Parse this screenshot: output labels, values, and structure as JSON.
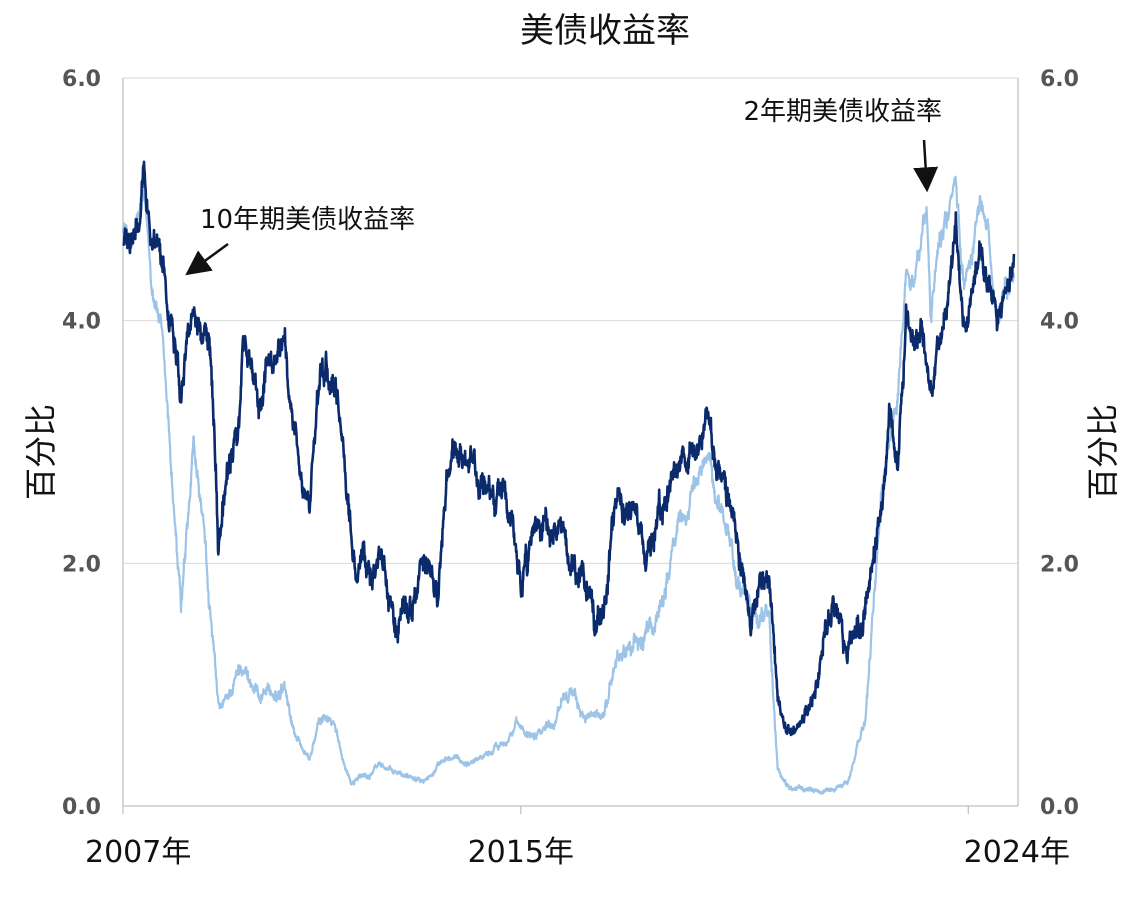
{
  "chart_data": {
    "type": "line",
    "title": "美债收益率",
    "ylabel_left": "百分比",
    "ylabel_right": "百分比",
    "x_range": [
      "2007-01",
      "2024-12"
    ],
    "x_tick_labels": [
      "2007年",
      "2015年",
      "2024年"
    ],
    "x_tick_positions": [
      "2007-01",
      "2015-01",
      "2024-01"
    ],
    "ylim": [
      0,
      6
    ],
    "y_tick_labels": [
      "0.0",
      "2.0",
      "4.0",
      "6.0"
    ],
    "grid": true,
    "colors": {
      "ten_year": "#0a2a6b",
      "two_year": "#9dc3e6"
    },
    "annotations": [
      {
        "text": "10年期美债收益率",
        "target_date": "2008-05",
        "target_value": 4.3,
        "series": "10年期美债收益率"
      },
      {
        "text": "2年期美债收益率",
        "target_date": "2023-03",
        "target_value": 5.0,
        "series": "2年期美债收益率"
      }
    ],
    "series": [
      {
        "name": "10年期美债收益率",
        "color": "#0a2a6b",
        "points": [
          [
            "2007-01",
            4.65
          ],
          [
            "2007-03",
            4.6
          ],
          [
            "2007-05",
            4.75
          ],
          [
            "2007-06",
            5.2
          ],
          [
            "2007-08",
            4.7
          ],
          [
            "2007-10",
            4.6
          ],
          [
            "2007-12",
            4.1
          ],
          [
            "2008-02",
            3.8
          ],
          [
            "2008-03",
            3.45
          ],
          [
            "2008-05",
            4.0
          ],
          [
            "2008-06",
            4.2
          ],
          [
            "2008-08",
            3.9
          ],
          [
            "2008-10",
            3.8
          ],
          [
            "2008-11",
            3.2
          ],
          [
            "2008-12",
            2.2
          ],
          [
            "2009-01",
            2.5
          ],
          [
            "2009-03",
            2.8
          ],
          [
            "2009-05",
            3.2
          ],
          [
            "2009-06",
            3.8
          ],
          [
            "2009-08",
            3.6
          ],
          [
            "2009-10",
            3.3
          ],
          [
            "2009-12",
            3.7
          ],
          [
            "2010-02",
            3.7
          ],
          [
            "2010-04",
            3.9
          ],
          [
            "2010-06",
            3.1
          ],
          [
            "2010-08",
            2.6
          ],
          [
            "2010-10",
            2.5
          ],
          [
            "2010-12",
            3.3
          ],
          [
            "2011-02",
            3.6
          ],
          [
            "2011-04",
            3.4
          ],
          [
            "2011-06",
            3.0
          ],
          [
            "2011-08",
            2.3
          ],
          [
            "2011-09",
            1.9
          ],
          [
            "2011-11",
            2.0
          ],
          [
            "2012-01",
            1.9
          ],
          [
            "2012-03",
            2.2
          ],
          [
            "2012-05",
            1.7
          ],
          [
            "2012-07",
            1.5
          ],
          [
            "2012-09",
            1.7
          ],
          [
            "2012-11",
            1.65
          ],
          [
            "2013-01",
            1.9
          ],
          [
            "2013-03",
            1.95
          ],
          [
            "2013-05",
            1.7
          ],
          [
            "2013-07",
            2.55
          ],
          [
            "2013-09",
            2.9
          ],
          [
            "2013-11",
            2.7
          ],
          [
            "2014-01",
            2.85
          ],
          [
            "2014-03",
            2.7
          ],
          [
            "2014-05",
            2.55
          ],
          [
            "2014-07",
            2.5
          ],
          [
            "2014-09",
            2.6
          ],
          [
            "2014-11",
            2.3
          ],
          [
            "2015-01",
            1.8
          ],
          [
            "2015-03",
            2.0
          ],
          [
            "2015-05",
            2.2
          ],
          [
            "2015-07",
            2.3
          ],
          [
            "2015-09",
            2.1
          ],
          [
            "2015-11",
            2.25
          ],
          [
            "2016-01",
            2.0
          ],
          [
            "2016-03",
            1.85
          ],
          [
            "2016-05",
            1.8
          ],
          [
            "2016-07",
            1.45
          ],
          [
            "2016-09",
            1.6
          ],
          [
            "2016-11",
            2.3
          ],
          [
            "2016-12",
            2.5
          ],
          [
            "2017-02",
            2.4
          ],
          [
            "2017-04",
            2.3
          ],
          [
            "2017-06",
            2.2
          ],
          [
            "2017-08",
            2.2
          ],
          [
            "2017-10",
            2.35
          ],
          [
            "2017-12",
            2.4
          ],
          [
            "2018-02",
            2.85
          ],
          [
            "2018-04",
            2.9
          ],
          [
            "2018-06",
            2.9
          ],
          [
            "2018-08",
            2.9
          ],
          [
            "2018-10",
            3.15
          ],
          [
            "2018-12",
            2.8
          ],
          [
            "2019-02",
            2.7
          ],
          [
            "2019-04",
            2.5
          ],
          [
            "2019-06",
            2.05
          ],
          [
            "2019-08",
            1.6
          ],
          [
            "2019-10",
            1.8
          ],
          [
            "2019-12",
            1.9
          ],
          [
            "2020-01",
            1.8
          ],
          [
            "2020-03",
            0.8
          ],
          [
            "2020-05",
            0.65
          ],
          [
            "2020-07",
            0.6
          ],
          [
            "2020-09",
            0.68
          ],
          [
            "2020-11",
            0.85
          ],
          [
            "2021-01",
            1.1
          ],
          [
            "2021-03",
            1.6
          ],
          [
            "2021-05",
            1.6
          ],
          [
            "2021-07",
            1.3
          ],
          [
            "2021-09",
            1.4
          ],
          [
            "2021-11",
            1.5
          ],
          [
            "2022-01",
            1.8
          ],
          [
            "2022-03",
            2.3
          ],
          [
            "2022-05",
            2.9
          ],
          [
            "2022-06",
            3.3
          ],
          [
            "2022-08",
            2.8
          ],
          [
            "2022-10",
            4.1
          ],
          [
            "2022-12",
            3.8
          ],
          [
            "2023-02",
            3.9
          ],
          [
            "2023-04",
            3.45
          ],
          [
            "2023-06",
            3.8
          ],
          [
            "2023-08",
            4.2
          ],
          [
            "2023-10",
            4.85
          ],
          [
            "2023-12",
            3.9
          ],
          [
            "2024-02",
            4.2
          ],
          [
            "2024-04",
            4.6
          ],
          [
            "2024-06",
            4.3
          ],
          [
            "2024-08",
            3.9
          ],
          [
            "2024-10",
            4.2
          ],
          [
            "2024-12",
            4.55
          ]
        ]
      },
      {
        "name": "2年期美债收益率",
        "color": "#9dc3e6",
        "points": [
          [
            "2007-01",
            4.8
          ],
          [
            "2007-03",
            4.6
          ],
          [
            "2007-05",
            4.85
          ],
          [
            "2007-06",
            5.0
          ],
          [
            "2007-08",
            4.3
          ],
          [
            "2007-10",
            4.0
          ],
          [
            "2007-12",
            3.1
          ],
          [
            "2008-01",
            2.6
          ],
          [
            "2008-03",
            1.6
          ],
          [
            "2008-05",
            2.4
          ],
          [
            "2008-06",
            2.9
          ],
          [
            "2008-08",
            2.4
          ],
          [
            "2008-10",
            1.6
          ],
          [
            "2008-12",
            0.8
          ],
          [
            "2009-01",
            0.8
          ],
          [
            "2009-03",
            0.95
          ],
          [
            "2009-06",
            1.2
          ],
          [
            "2009-08",
            1.0
          ],
          [
            "2009-10",
            0.9
          ],
          [
            "2009-12",
            1.0
          ],
          [
            "2010-02",
            0.85
          ],
          [
            "2010-04",
            1.05
          ],
          [
            "2010-06",
            0.65
          ],
          [
            "2010-08",
            0.5
          ],
          [
            "2010-10",
            0.38
          ],
          [
            "2010-12",
            0.65
          ],
          [
            "2011-02",
            0.75
          ],
          [
            "2011-04",
            0.65
          ],
          [
            "2011-06",
            0.4
          ],
          [
            "2011-08",
            0.2
          ],
          [
            "2011-10",
            0.25
          ],
          [
            "2011-12",
            0.24
          ],
          [
            "2012-03",
            0.35
          ],
          [
            "2012-06",
            0.28
          ],
          [
            "2012-09",
            0.25
          ],
          [
            "2012-12",
            0.25
          ],
          [
            "2013-03",
            0.25
          ],
          [
            "2013-06",
            0.35
          ],
          [
            "2013-09",
            0.4
          ],
          [
            "2013-12",
            0.35
          ],
          [
            "2014-03",
            0.4
          ],
          [
            "2014-06",
            0.45
          ],
          [
            "2014-09",
            0.55
          ],
          [
            "2014-12",
            0.65
          ],
          [
            "2015-03",
            0.6
          ],
          [
            "2015-06",
            0.65
          ],
          [
            "2015-09",
            0.7
          ],
          [
            "2015-12",
            1.0
          ],
          [
            "2016-03",
            0.8
          ],
          [
            "2016-06",
            0.7
          ],
          [
            "2016-09",
            0.75
          ],
          [
            "2016-12",
            1.2
          ],
          [
            "2017-03",
            1.3
          ],
          [
            "2017-06",
            1.35
          ],
          [
            "2017-09",
            1.45
          ],
          [
            "2017-12",
            1.85
          ],
          [
            "2018-03",
            2.3
          ],
          [
            "2018-06",
            2.5
          ],
          [
            "2018-09",
            2.8
          ],
          [
            "2018-11",
            2.95
          ],
          [
            "2018-12",
            2.55
          ],
          [
            "2019-03",
            2.3
          ],
          [
            "2019-06",
            1.75
          ],
          [
            "2019-09",
            1.6
          ],
          [
            "2019-12",
            1.6
          ],
          [
            "2020-01",
            1.5
          ],
          [
            "2020-03",
            0.3
          ],
          [
            "2020-05",
            0.17
          ],
          [
            "2020-08",
            0.13
          ],
          [
            "2020-11",
            0.15
          ],
          [
            "2021-02",
            0.11
          ],
          [
            "2021-05",
            0.15
          ],
          [
            "2021-08",
            0.2
          ],
          [
            "2021-10",
            0.45
          ],
          [
            "2021-12",
            0.7
          ],
          [
            "2022-02",
            1.5
          ],
          [
            "2022-04",
            2.6
          ],
          [
            "2022-06",
            3.0
          ],
          [
            "2022-08",
            3.4
          ],
          [
            "2022-10",
            4.4
          ],
          [
            "2022-12",
            4.3
          ],
          [
            "2023-02",
            4.7
          ],
          [
            "2023-03",
            5.05
          ],
          [
            "2023-04",
            4.0
          ],
          [
            "2023-06",
            4.8
          ],
          [
            "2023-08",
            4.9
          ],
          [
            "2023-10",
            5.15
          ],
          [
            "2023-12",
            4.3
          ],
          [
            "2024-02",
            4.6
          ],
          [
            "2024-04",
            5.0
          ],
          [
            "2024-06",
            4.7
          ],
          [
            "2024-08",
            4.0
          ],
          [
            "2024-10",
            4.2
          ],
          [
            "2024-12",
            4.35
          ]
        ]
      }
    ]
  }
}
